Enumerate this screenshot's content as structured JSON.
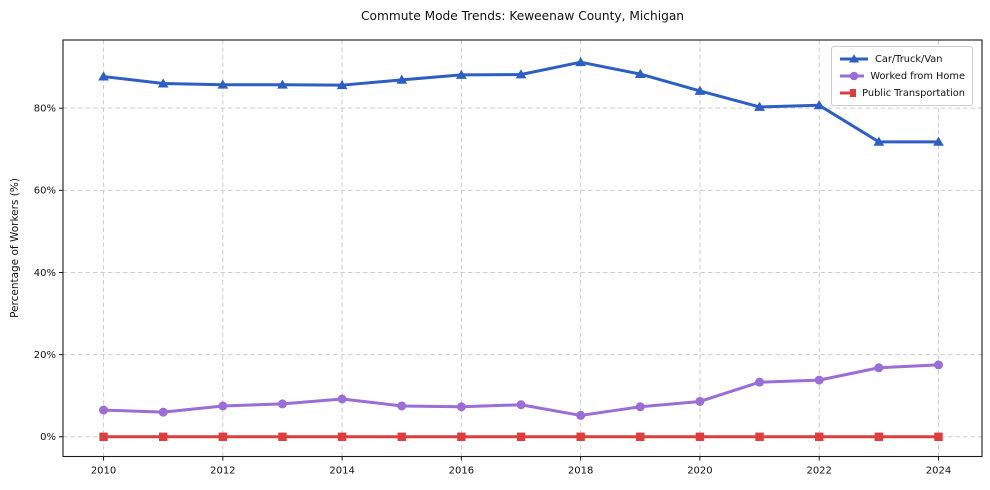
{
  "chart_data": {
    "type": "line",
    "title": "Commute Mode Trends: Keweenaw County, Michigan",
    "xlabel": "",
    "ylabel": "Percentage of Workers (%)",
    "x": [
      2010,
      2011,
      2012,
      2013,
      2014,
      2015,
      2016,
      2017,
      2018,
      2019,
      2020,
      2021,
      2022,
      2023,
      2024
    ],
    "series": [
      {
        "name": "Car/Truck/Van",
        "marker": "triangle",
        "color": "#2d5ec4",
        "values": [
          87.7,
          86.0,
          85.7,
          85.7,
          85.6,
          86.9,
          88.1,
          88.2,
          91.2,
          88.3,
          84.2,
          80.3,
          80.7,
          71.8,
          71.8
        ]
      },
      {
        "name": "Worked from Home",
        "marker": "circle",
        "color": "#9a6dd7",
        "values": [
          6.5,
          6.0,
          7.5,
          8.0,
          9.2,
          7.5,
          7.3,
          7.8,
          5.2,
          7.3,
          8.6,
          13.3,
          13.8,
          16.8,
          17.5
        ]
      },
      {
        "name": "Public Transportation",
        "marker": "square",
        "color": "#dd3d3c",
        "values": [
          0.0,
          0.0,
          0.0,
          0.0,
          0.0,
          0.0,
          0.0,
          0.0,
          0.0,
          0.0,
          0.0,
          0.0,
          0.0,
          0.0,
          0.0
        ]
      }
    ],
    "xticks": {
      "values": [
        2010,
        2012,
        2014,
        2016,
        2018,
        2020,
        2022,
        2024
      ],
      "labels": [
        "2010",
        "2012",
        "2014",
        "2016",
        "2018",
        "2020",
        "2022",
        "2024"
      ]
    },
    "yticks": {
      "values": [
        0,
        20,
        40,
        60,
        80
      ],
      "labels": [
        "0%",
        "20%",
        "40%",
        "60%",
        "80%"
      ]
    },
    "xlim": [
      2009.32,
      2024.73
    ],
    "ylim": [
      -4.8,
      96.6
    ],
    "grid": true,
    "legend_position": "upper right"
  },
  "colors": {
    "car_truck_van": "#2d5ec4",
    "worked_from_home": "#9a6dd7",
    "public_transportation": "#dd3d3c",
    "gridline": "#cdcdcd",
    "axis_frame": "#1a1a1a",
    "text": "#111111",
    "background": "#ffffff",
    "legend_border": "#cccccc"
  }
}
